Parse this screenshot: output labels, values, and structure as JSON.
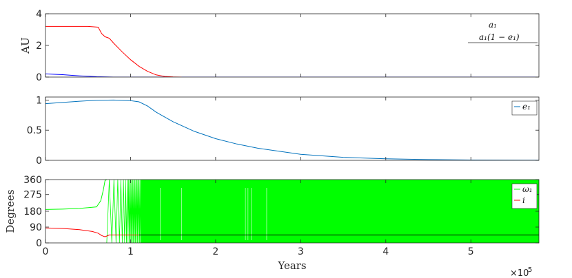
{
  "chart_data": [
    {
      "type": "line",
      "title": "",
      "xlabel": "",
      "ylabel": "AU",
      "xlim": [
        0,
        580000
      ],
      "ylim": [
        0,
        4
      ],
      "yticks": [
        0,
        2,
        4
      ],
      "grid": false,
      "legend_position": "top-right",
      "series": [
        {
          "name": "a1",
          "legend_label": "a₁",
          "color": "#0000ff",
          "x": [
            0,
            20000,
            40000,
            60000,
            80000,
            100000,
            150000,
            580000
          ],
          "y": [
            0.2,
            0.15,
            0.08,
            0.02,
            0.0,
            0.0,
            0.0,
            0.0
          ]
        },
        {
          "name": "a1(1-e1)",
          "legend_label": "a₁(1 − e₁)",
          "color": "#ff0000",
          "x": [
            0,
            10000,
            30000,
            50000,
            62000,
            66000,
            70000,
            75000,
            80000,
            90000,
            100000,
            110000,
            120000,
            130000,
            140000,
            150000,
            160000
          ],
          "y": [
            3.2,
            3.2,
            3.2,
            3.2,
            3.15,
            2.75,
            2.55,
            2.45,
            2.15,
            1.6,
            1.1,
            0.68,
            0.36,
            0.14,
            0.04,
            0.01,
            0.0
          ]
        }
      ]
    },
    {
      "type": "line",
      "title": "",
      "xlabel": "",
      "ylabel": "",
      "xlim": [
        0,
        580000
      ],
      "ylim": [
        0,
        1.05
      ],
      "yticks": [
        0,
        0.5,
        1
      ],
      "grid": false,
      "legend_position": "top-right",
      "series": [
        {
          "name": "e1",
          "legend_label": "e₁",
          "color": "#0072bd",
          "x": [
            0,
            20000,
            40000,
            60000,
            80000,
            100000,
            110000,
            120000,
            130000,
            140000,
            150000,
            175000,
            200000,
            225000,
            250000,
            300000,
            350000,
            400000,
            450000,
            500000,
            580000
          ],
          "y": [
            0.94,
            0.96,
            0.98,
            0.995,
            1.0,
            0.99,
            0.97,
            0.9,
            0.8,
            0.72,
            0.64,
            0.48,
            0.36,
            0.27,
            0.2,
            0.1,
            0.05,
            0.025,
            0.012,
            0.006,
            0.002
          ]
        }
      ]
    },
    {
      "type": "line",
      "title": "",
      "xlabel": "Years",
      "x_exponent_label": "×10",
      "x_exponent_value": "5",
      "ylabel": "Degrees",
      "xlim": [
        0,
        580000
      ],
      "ylim": [
        0,
        360
      ],
      "yticks": [
        0,
        90,
        180,
        275,
        360
      ],
      "xticks": [
        0,
        100000,
        200000,
        300000,
        400000,
        500000
      ],
      "xtick_labels": [
        "0",
        "1",
        "2",
        "3",
        "4",
        "5"
      ],
      "grid": false,
      "legend_position": "top-right",
      "series": [
        {
          "name": "omega1",
          "legend_label": "ω₁",
          "color": "#00ff00",
          "note_range": [
            0,
            360
          ],
          "x": [
            0,
            20000,
            40000,
            60000,
            65000,
            68000,
            70000,
            72000
          ],
          "y": [
            190,
            192,
            196,
            205,
            240,
            300,
            355,
            360
          ],
          "circulation_start": 72000,
          "circulation_dense_from": 112000,
          "circulation_range": [
            0,
            360
          ]
        },
        {
          "name": "i",
          "legend_label": "i",
          "color": "#ff0000",
          "x": [
            0,
            20000,
            40000,
            55000,
            62000,
            66000,
            70000,
            75000,
            90000,
            120000,
            580000
          ],
          "y": [
            85,
            82,
            75,
            65,
            55,
            42,
            35,
            45,
            45,
            45,
            45
          ]
        },
        {
          "name": "i_late",
          "color": "#000000",
          "x": [
            110000,
            580000
          ],
          "y": [
            45,
            45
          ]
        }
      ]
    }
  ]
}
